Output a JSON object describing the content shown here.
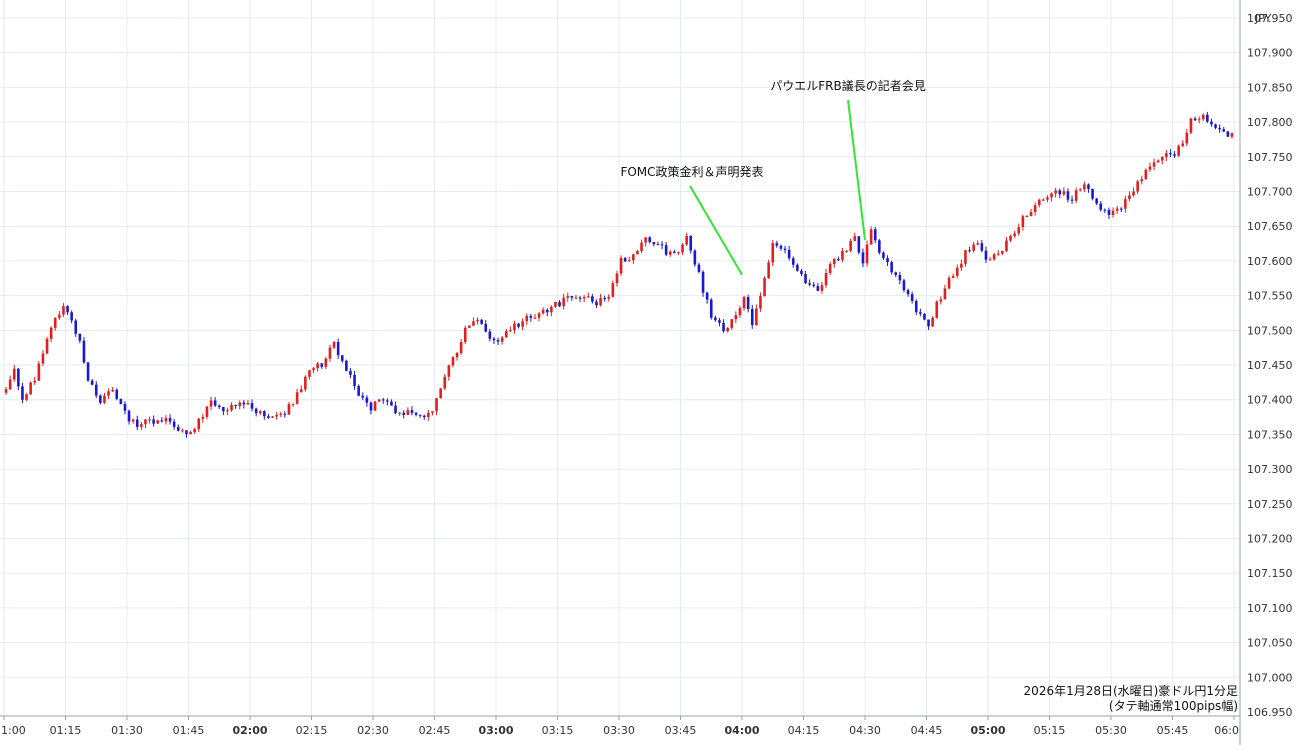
{
  "chart_data": {
    "type": "candlestick",
    "unit_label": "JPY",
    "ylim": [
      106.95,
      107.95
    ],
    "y_ticks": [
      106.95,
      107.0,
      107.05,
      107.1,
      107.15,
      107.2,
      107.25,
      107.3,
      107.35,
      107.4,
      107.45,
      107.5,
      107.55,
      107.6,
      107.65,
      107.7,
      107.75,
      107.8,
      107.85,
      107.9,
      107.95
    ],
    "y_tick_labels": [
      "106.950",
      "107.000",
      "107.050",
      "107.100",
      "107.150",
      "107.200",
      "107.250",
      "107.300",
      "107.350",
      "107.400",
      "107.450",
      "107.500",
      "107.550",
      "107.600",
      "107.650",
      "107.700",
      "107.750",
      "107.800",
      "107.850",
      "107.900",
      "107.950"
    ],
    "x_tick_labels": [
      "1:00",
      "01:15",
      "01:30",
      "01:45",
      "02:00",
      "02:15",
      "02:30",
      "02:45",
      "03:00",
      "03:15",
      "03:30",
      "03:45",
      "04:00",
      "04:15",
      "04:30",
      "04:45",
      "05:00",
      "05:15",
      "05:30",
      "05:45",
      "06:0"
    ],
    "bold_x_ticks": [
      "02:00",
      "03:00",
      "04:00",
      "05:00"
    ],
    "up_color": "#e02020",
    "down_color": "#1a1acc",
    "annotation_color": "#33e633",
    "grid": true,
    "bar_minutes": 1,
    "start": "01:00",
    "end": "06:00",
    "keypoints": [
      [
        "01:00",
        107.41
      ],
      [
        "01:03",
        107.44
      ],
      [
        "01:05",
        107.4
      ],
      [
        "01:08",
        107.43
      ],
      [
        "01:10",
        107.47
      ],
      [
        "01:13",
        107.52
      ],
      [
        "01:15",
        107.53
      ],
      [
        "01:17",
        107.52
      ],
      [
        "01:19",
        107.48
      ],
      [
        "01:21",
        107.43
      ],
      [
        "01:24",
        107.4
      ],
      [
        "01:27",
        107.41
      ],
      [
        "01:30",
        107.38
      ],
      [
        "01:33",
        107.36
      ],
      [
        "01:36",
        107.37
      ],
      [
        "01:40",
        107.37
      ],
      [
        "01:43",
        107.36
      ],
      [
        "01:45",
        107.345
      ],
      [
        "01:48",
        107.37
      ],
      [
        "01:51",
        107.4
      ],
      [
        "01:55",
        107.38
      ],
      [
        "01:58",
        107.4
      ],
      [
        "02:00",
        107.39
      ],
      [
        "02:03",
        107.38
      ],
      [
        "02:06",
        107.37
      ],
      [
        "02:09",
        107.38
      ],
      [
        "02:12",
        107.41
      ],
      [
        "02:15",
        107.44
      ],
      [
        "02:18",
        107.45
      ],
      [
        "02:20",
        107.47
      ],
      [
        "02:21",
        107.48
      ],
      [
        "02:24",
        107.44
      ],
      [
        "02:27",
        107.41
      ],
      [
        "02:30",
        107.39
      ],
      [
        "02:33",
        107.4
      ],
      [
        "02:36",
        107.38
      ],
      [
        "02:39",
        107.38
      ],
      [
        "02:42",
        107.375
      ],
      [
        "02:45",
        107.38
      ],
      [
        "02:47",
        107.42
      ],
      [
        "02:50",
        107.46
      ],
      [
        "02:53",
        107.5
      ],
      [
        "02:56",
        107.52
      ],
      [
        "03:00",
        107.48
      ],
      [
        "03:03",
        107.5
      ],
      [
        "03:06",
        107.51
      ],
      [
        "03:10",
        107.52
      ],
      [
        "03:13",
        107.53
      ],
      [
        "03:16",
        107.54
      ],
      [
        "03:19",
        107.545
      ],
      [
        "03:22",
        107.55
      ],
      [
        "03:25",
        107.54
      ],
      [
        "03:28",
        107.55
      ],
      [
        "03:31",
        107.6
      ],
      [
        "03:34",
        107.61
      ],
      [
        "03:37",
        107.63
      ],
      [
        "03:40",
        107.62
      ],
      [
        "03:43",
        107.61
      ],
      [
        "03:45",
        107.61
      ],
      [
        "03:47",
        107.63
      ],
      [
        "03:50",
        107.58
      ],
      [
        "03:53",
        107.52
      ],
      [
        "03:56",
        107.5
      ],
      [
        "03:59",
        107.52
      ],
      [
        "04:01",
        107.55
      ],
      [
        "04:03",
        107.51
      ],
      [
        "04:06",
        107.57
      ],
      [
        "04:08",
        107.62
      ],
      [
        "04:10",
        107.62
      ],
      [
        "04:13",
        107.6
      ],
      [
        "04:16",
        107.57
      ],
      [
        "04:19",
        107.555
      ],
      [
        "04:22",
        107.59
      ],
      [
        "04:25",
        107.61
      ],
      [
        "04:28",
        107.63
      ],
      [
        "04:30",
        107.6
      ],
      [
        "04:32",
        107.64
      ],
      [
        "04:35",
        107.6
      ],
      [
        "04:38",
        107.58
      ],
      [
        "04:41",
        107.55
      ],
      [
        "04:44",
        107.52
      ],
      [
        "04:46",
        107.51
      ],
      [
        "04:49",
        107.55
      ],
      [
        "04:52",
        107.58
      ],
      [
        "04:55",
        107.61
      ],
      [
        "04:58",
        107.63
      ],
      [
        "05:00",
        107.6
      ],
      [
        "05:03",
        107.61
      ],
      [
        "05:06",
        107.63
      ],
      [
        "05:09",
        107.66
      ],
      [
        "05:12",
        107.68
      ],
      [
        "05:15",
        107.69
      ],
      [
        "05:18",
        107.7
      ],
      [
        "05:21",
        107.69
      ],
      [
        "05:24",
        107.71
      ],
      [
        "05:27",
        107.68
      ],
      [
        "05:30",
        107.67
      ],
      [
        "05:33",
        107.68
      ],
      [
        "05:36",
        107.7
      ],
      [
        "05:39",
        107.73
      ],
      [
        "05:42",
        107.75
      ],
      [
        "05:45",
        107.75
      ],
      [
        "05:48",
        107.77
      ],
      [
        "05:50",
        107.8
      ],
      [
        "05:53",
        107.805
      ],
      [
        "05:56",
        107.79
      ],
      [
        "06:00",
        107.78
      ]
    ],
    "annotations": [
      {
        "text": "FOMC政策金利＆声明発表",
        "time": "04:00",
        "price": 107.58
      },
      {
        "text": "パウエルFRB議長の記者会見",
        "time": "04:30",
        "price": 107.63
      }
    ],
    "note_lines": [
      "2026年1月28日(水曜日)豪ドル円1分足",
      "(タテ軸通常100pips幅)"
    ]
  }
}
